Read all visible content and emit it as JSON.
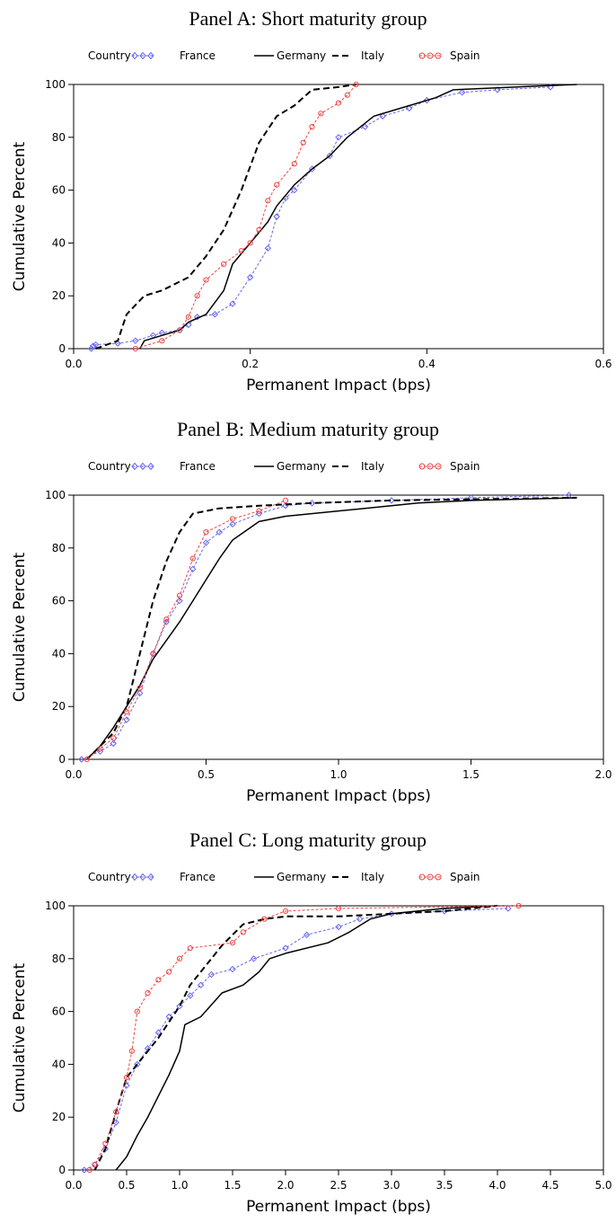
{
  "legend": {
    "title": "Country",
    "entries": [
      {
        "name": "France",
        "color": "#6666ee",
        "style": "dash-diamond"
      },
      {
        "name": "Germany",
        "color": "#000000",
        "style": "solid"
      },
      {
        "name": "Italy",
        "color": "#000000",
        "style": "dash"
      },
      {
        "name": "Spain",
        "color": "#ee4444",
        "style": "dash-circle"
      }
    ]
  },
  "chart_data": [
    {
      "type": "line",
      "title": "Panel A: Short maturity group",
      "xlabel": "Permanent Impact (bps)",
      "ylabel": "Cumulative Percent",
      "xlim": [
        0,
        0.6
      ],
      "ylim": [
        0,
        100
      ],
      "xticks": [
        "0.0",
        "0.2",
        "0.4",
        "0.6"
      ],
      "yticks": [
        "0",
        "20",
        "40",
        "60",
        "80",
        "100"
      ],
      "series": [
        {
          "name": "France",
          "points": [
            [
              0.02,
              0
            ],
            [
              0.022,
              1
            ],
            [
              0.025,
              1.5
            ],
            [
              0.05,
              2
            ],
            [
              0.07,
              3
            ],
            [
              0.09,
              5
            ],
            [
              0.1,
              6
            ],
            [
              0.12,
              7
            ],
            [
              0.13,
              9
            ],
            [
              0.14,
              12
            ],
            [
              0.16,
              13
            ],
            [
              0.18,
              17
            ],
            [
              0.2,
              27
            ],
            [
              0.22,
              38
            ],
            [
              0.23,
              50
            ],
            [
              0.24,
              57
            ],
            [
              0.25,
              60
            ],
            [
              0.27,
              68
            ],
            [
              0.29,
              73
            ],
            [
              0.3,
              80
            ],
            [
              0.33,
              84
            ],
            [
              0.35,
              88
            ],
            [
              0.38,
              91
            ],
            [
              0.4,
              94
            ],
            [
              0.44,
              97
            ],
            [
              0.48,
              98
            ],
            [
              0.54,
              99
            ]
          ]
        },
        {
          "name": "Germany",
          "points": [
            [
              0.075,
              0
            ],
            [
              0.08,
              3
            ],
            [
              0.1,
              5
            ],
            [
              0.12,
              7
            ],
            [
              0.13,
              10
            ],
            [
              0.15,
              13
            ],
            [
              0.17,
              22
            ],
            [
              0.18,
              32
            ],
            [
              0.2,
              40
            ],
            [
              0.22,
              48
            ],
            [
              0.23,
              54
            ],
            [
              0.25,
              62
            ],
            [
              0.27,
              68
            ],
            [
              0.29,
              73
            ],
            [
              0.31,
              80
            ],
            [
              0.34,
              88
            ],
            [
              0.37,
              91
            ],
            [
              0.41,
              95
            ],
            [
              0.43,
              98
            ],
            [
              0.5,
              99
            ],
            [
              0.57,
              100
            ]
          ]
        },
        {
          "name": "Italy",
          "points": [
            [
              0.025,
              0
            ],
            [
              0.05,
              3
            ],
            [
              0.06,
              13
            ],
            [
              0.08,
              20
            ],
            [
              0.1,
              22
            ],
            [
              0.13,
              27
            ],
            [
              0.15,
              35
            ],
            [
              0.17,
              45
            ],
            [
              0.19,
              60
            ],
            [
              0.21,
              78
            ],
            [
              0.23,
              88
            ],
            [
              0.25,
              92
            ],
            [
              0.27,
              98
            ],
            [
              0.3,
              99
            ],
            [
              0.32,
              100
            ]
          ]
        },
        {
          "name": "Spain",
          "points": [
            [
              0.07,
              0
            ],
            [
              0.1,
              3
            ],
            [
              0.12,
              7
            ],
            [
              0.13,
              12
            ],
            [
              0.14,
              20
            ],
            [
              0.15,
              26
            ],
            [
              0.17,
              32
            ],
            [
              0.19,
              37
            ],
            [
              0.2,
              40
            ],
            [
              0.21,
              45
            ],
            [
              0.22,
              56
            ],
            [
              0.23,
              62
            ],
            [
              0.25,
              70
            ],
            [
              0.26,
              78
            ],
            [
              0.27,
              84
            ],
            [
              0.28,
              89
            ],
            [
              0.3,
              93
            ],
            [
              0.31,
              96
            ],
            [
              0.32,
              100
            ]
          ]
        }
      ]
    },
    {
      "type": "line",
      "title": "Panel B: Medium maturity group",
      "xlabel": "Permanent Impact (bps)",
      "ylabel": "Cumulative Percent",
      "xlim": [
        0,
        2
      ],
      "ylim": [
        0,
        100
      ],
      "xticks": [
        "0.0",
        "0.5",
        "1.0",
        "1.5",
        "2.0"
      ],
      "yticks": [
        "0",
        "20",
        "40",
        "60",
        "80",
        "100"
      ],
      "series": [
        {
          "name": "France",
          "points": [
            [
              0.03,
              0
            ],
            [
              0.1,
              3
            ],
            [
              0.15,
              6
            ],
            [
              0.2,
              15
            ],
            [
              0.25,
              25
            ],
            [
              0.3,
              40
            ],
            [
              0.35,
              52
            ],
            [
              0.4,
              60
            ],
            [
              0.45,
              72
            ],
            [
              0.5,
              82
            ],
            [
              0.55,
              86
            ],
            [
              0.6,
              89
            ],
            [
              0.7,
              93
            ],
            [
              0.8,
              96
            ],
            [
              0.9,
              97
            ],
            [
              1.2,
              98
            ],
            [
              1.5,
              99
            ],
            [
              1.87,
              100
            ]
          ]
        },
        {
          "name": "Germany",
          "points": [
            [
              0.05,
              0
            ],
            [
              0.1,
              5
            ],
            [
              0.15,
              12
            ],
            [
              0.2,
              20
            ],
            [
              0.25,
              28
            ],
            [
              0.3,
              38
            ],
            [
              0.35,
              45
            ],
            [
              0.4,
              52
            ],
            [
              0.45,
              60
            ],
            [
              0.5,
              68
            ],
            [
              0.55,
              76
            ],
            [
              0.6,
              83
            ],
            [
              0.7,
              90
            ],
            [
              0.8,
              92
            ],
            [
              1.0,
              94
            ],
            [
              1.1,
              95
            ],
            [
              1.3,
              97
            ],
            [
              1.5,
              98
            ],
            [
              1.9,
              99
            ]
          ]
        },
        {
          "name": "Italy",
          "points": [
            [
              0.05,
              0
            ],
            [
              0.1,
              5
            ],
            [
              0.15,
              10
            ],
            [
              0.2,
              20
            ],
            [
              0.25,
              40
            ],
            [
              0.3,
              60
            ],
            [
              0.35,
              75
            ],
            [
              0.4,
              86
            ],
            [
              0.45,
              93
            ],
            [
              0.55,
              95
            ],
            [
              0.7,
              96
            ],
            [
              0.9,
              97
            ],
            [
              1.2,
              98
            ],
            [
              1.9,
              99
            ]
          ]
        },
        {
          "name": "Spain",
          "points": [
            [
              0.05,
              0
            ],
            [
              0.1,
              4
            ],
            [
              0.15,
              8
            ],
            [
              0.2,
              18
            ],
            [
              0.25,
              27
            ],
            [
              0.3,
              40
            ],
            [
              0.35,
              53
            ],
            [
              0.4,
              62
            ],
            [
              0.45,
              76
            ],
            [
              0.5,
              86
            ],
            [
              0.6,
              91
            ],
            [
              0.7,
              94
            ],
            [
              0.8,
              98
            ]
          ]
        }
      ]
    },
    {
      "type": "line",
      "title": "Panel C: Long maturity group",
      "xlabel": "Permanent Impact (bps)",
      "ylabel": "Cumulative Percent",
      "xlim": [
        0,
        5
      ],
      "ylim": [
        0,
        100
      ],
      "xticks": [
        "0.0",
        "0.5",
        "1.0",
        "1.5",
        "2.0",
        "2.5",
        "3.0",
        "3.5",
        "4.0",
        "4.5",
        "5.0"
      ],
      "yticks": [
        "0",
        "20",
        "40",
        "60",
        "80",
        "100"
      ],
      "series": [
        {
          "name": "France",
          "points": [
            [
              0.1,
              0
            ],
            [
              0.2,
              2
            ],
            [
              0.3,
              8
            ],
            [
              0.4,
              18
            ],
            [
              0.5,
              32
            ],
            [
              0.6,
              40
            ],
            [
              0.7,
              46
            ],
            [
              0.8,
              52
            ],
            [
              0.9,
              58
            ],
            [
              1.0,
              62
            ],
            [
              1.1,
              66
            ],
            [
              1.2,
              70
            ],
            [
              1.3,
              74
            ],
            [
              1.5,
              76
            ],
            [
              1.7,
              80
            ],
            [
              2.0,
              84
            ],
            [
              2.2,
              89
            ],
            [
              2.5,
              92
            ],
            [
              2.7,
              95
            ],
            [
              3.0,
              97
            ],
            [
              3.5,
              98
            ],
            [
              4.1,
              99
            ]
          ]
        },
        {
          "name": "Germany",
          "points": [
            [
              0.4,
              0
            ],
            [
              0.5,
              5
            ],
            [
              0.6,
              13
            ],
            [
              0.7,
              20
            ],
            [
              0.8,
              28
            ],
            [
              0.9,
              36
            ],
            [
              1.0,
              45
            ],
            [
              1.05,
              55
            ],
            [
              1.2,
              58
            ],
            [
              1.4,
              67
            ],
            [
              1.6,
              70
            ],
            [
              1.75,
              75
            ],
            [
              1.85,
              80
            ],
            [
              2.0,
              82
            ],
            [
              2.4,
              86
            ],
            [
              2.6,
              90
            ],
            [
              2.8,
              95
            ],
            [
              3.0,
              97
            ],
            [
              3.5,
              99
            ],
            [
              4.0,
              100
            ]
          ]
        },
        {
          "name": "Italy",
          "points": [
            [
              0.2,
              0
            ],
            [
              0.3,
              8
            ],
            [
              0.4,
              22
            ],
            [
              0.5,
              35
            ],
            [
              0.6,
              40
            ],
            [
              0.8,
              50
            ],
            [
              1.0,
              62
            ],
            [
              1.1,
              70
            ],
            [
              1.2,
              75
            ],
            [
              1.4,
              85
            ],
            [
              1.6,
              93
            ],
            [
              1.8,
              95
            ],
            [
              2.0,
              96
            ],
            [
              2.5,
              96
            ],
            [
              3.0,
              97
            ],
            [
              3.5,
              98
            ],
            [
              4.0,
              100
            ]
          ]
        },
        {
          "name": "Spain",
          "points": [
            [
              0.15,
              0
            ],
            [
              0.2,
              2
            ],
            [
              0.3,
              10
            ],
            [
              0.4,
              22
            ],
            [
              0.5,
              35
            ],
            [
              0.55,
              45
            ],
            [
              0.6,
              60
            ],
            [
              0.7,
              67
            ],
            [
              0.8,
              72
            ],
            [
              0.9,
              75
            ],
            [
              1.0,
              80
            ],
            [
              1.1,
              84
            ],
            [
              1.5,
              86
            ],
            [
              1.6,
              90
            ],
            [
              1.8,
              95
            ],
            [
              2.0,
              98
            ],
            [
              2.5,
              99
            ],
            [
              4.2,
              100
            ]
          ]
        }
      ]
    }
  ]
}
